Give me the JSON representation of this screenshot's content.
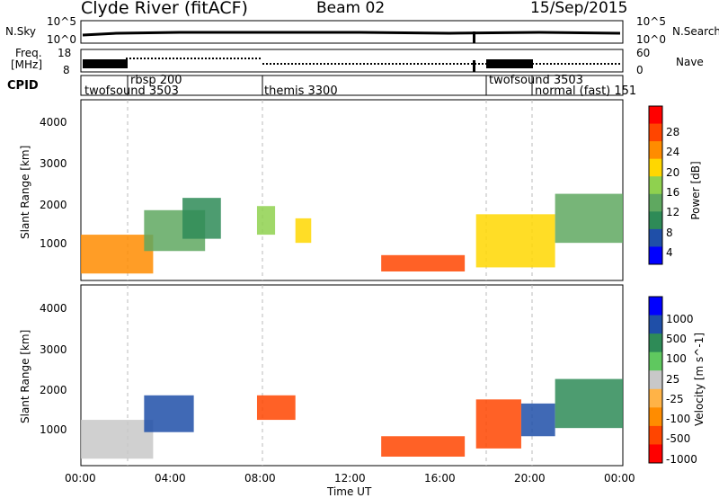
{
  "header": {
    "station": "Clyde River (fitACF)",
    "beam": "Beam 02",
    "date": "15/Sep/2015"
  },
  "noise_panel": {
    "left_label": "N.Sky",
    "left_ticks": [
      "10^5",
      "10^0"
    ],
    "right_label": "N.Search",
    "right_ticks": [
      "10^5",
      "10^0"
    ]
  },
  "freq_panel": {
    "left_label_line1": "Freq.",
    "left_label_line2": "[MHz]",
    "left_ticks": [
      "18",
      "8"
    ],
    "right_label": "Nave",
    "right_ticks": [
      "60",
      "0"
    ]
  },
  "cpid": {
    "label": "CPID",
    "programs": [
      {
        "name": "twofsound 3503",
        "start_hour": 0.0
      },
      {
        "name": "rbsp 200",
        "start_hour": 2.0
      },
      {
        "name": "themis 3300",
        "start_hour": 8.0
      },
      {
        "name": "twofsound 3503",
        "start_hour": 18.0
      },
      {
        "name": "normal (fast) 151",
        "start_hour": 20.0
      }
    ]
  },
  "colors": {
    "power_scale": [
      "#0000ff",
      "#1f4fa8",
      "#2e8b57",
      "#5fa860",
      "#8fd14f",
      "#ffd700",
      "#ff8c00",
      "#ff4500",
      "#ff0000"
    ],
    "velocity_scale": [
      "#ff0000",
      "#ff4500",
      "#ff8c00",
      "#ffb347",
      "#c8c8c8",
      "#5fc85f",
      "#2e8b57",
      "#1f4fa8",
      "#0000ff"
    ]
  },
  "chart_data": [
    {
      "type": "heatmap",
      "name": "power",
      "xlabel": "",
      "ylabel": "Slant Range [km]",
      "xlim": [
        0,
        24
      ],
      "ylim": [
        180,
        4600
      ],
      "y_ticks": [
        "1000",
        "2000",
        "3000",
        "4000"
      ],
      "colorbar_label": "Power [dB]",
      "colorbar_ticks": [
        "4",
        "8",
        "12",
        "16",
        "20",
        "24",
        "28"
      ],
      "regions": [
        {
          "t0": 0.0,
          "t1": 3.2,
          "r0": 350,
          "r1": 1300,
          "value": 22
        },
        {
          "t0": 2.8,
          "t1": 5.5,
          "r0": 900,
          "r1": 1900,
          "value": 14
        },
        {
          "t0": 4.5,
          "t1": 6.2,
          "r0": 1200,
          "r1": 2200,
          "value": 10
        },
        {
          "t0": 7.8,
          "t1": 8.6,
          "r0": 1300,
          "r1": 2000,
          "value": 16
        },
        {
          "t0": 9.5,
          "t1": 10.2,
          "r0": 1100,
          "r1": 1700,
          "value": 18
        },
        {
          "t0": 13.3,
          "t1": 17.0,
          "r0": 400,
          "r1": 800,
          "value": 26
        },
        {
          "t0": 17.5,
          "t1": 21.0,
          "r0": 500,
          "r1": 1800,
          "value": 20
        },
        {
          "t0": 21.0,
          "t1": 24.0,
          "r0": 1100,
          "r1": 2300,
          "value": 12
        }
      ]
    },
    {
      "type": "heatmap",
      "name": "velocity",
      "xlabel": "Time UT",
      "ylabel": "Slant Range [km]",
      "xlim": [
        0,
        24
      ],
      "ylim": [
        180,
        4600
      ],
      "x_ticks": [
        "00:00",
        "04:00",
        "08:00",
        "12:00",
        "16:00",
        "20:00",
        "00:00"
      ],
      "y_ticks": [
        "1000",
        "2000",
        "3000",
        "4000"
      ],
      "colorbar_label": "Velocity [m s^-1]",
      "colorbar_ticks": [
        "-1000",
        "-500",
        "-100",
        "-25",
        "25",
        "100",
        "500",
        "1000"
      ],
      "regions": [
        {
          "t0": 0.0,
          "t1": 3.2,
          "r0": 350,
          "r1": 1300,
          "value": 0
        },
        {
          "t0": 2.8,
          "t1": 5.0,
          "r0": 1000,
          "r1": 1900,
          "value": 600
        },
        {
          "t0": 7.8,
          "t1": 9.5,
          "r0": 1300,
          "r1": 1900,
          "value": -400
        },
        {
          "t0": 13.3,
          "t1": 17.0,
          "r0": 400,
          "r1": 900,
          "value": -300
        },
        {
          "t0": 17.5,
          "t1": 19.5,
          "r0": 600,
          "r1": 1800,
          "value": -250
        },
        {
          "t0": 19.5,
          "t1": 21.0,
          "r0": 900,
          "r1": 1700,
          "value": 700
        },
        {
          "t0": 21.0,
          "t1": 24.0,
          "r0": 1100,
          "r1": 2300,
          "value": 200
        }
      ]
    }
  ]
}
